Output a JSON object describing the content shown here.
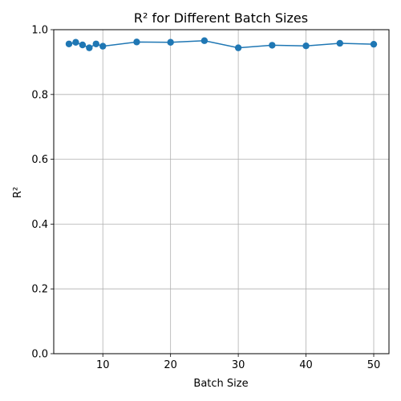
{
  "chart_data": {
    "type": "line",
    "title": "R² for Different Batch Sizes",
    "xlabel": "Batch Size",
    "ylabel": "R²",
    "xlim": [
      2.75,
      52.25
    ],
    "ylim": [
      0.0,
      1.0
    ],
    "xticks": [
      10,
      20,
      30,
      40,
      50
    ],
    "yticks": [
      0.0,
      0.2,
      0.4,
      0.6,
      0.8,
      1.0
    ],
    "xtick_labels": [
      "10",
      "20",
      "30",
      "40",
      "50"
    ],
    "ytick_labels": [
      "0.0",
      "0.2",
      "0.4",
      "0.6",
      "0.8",
      "1.0"
    ],
    "grid": true,
    "markers": true,
    "color": "#1f77b4",
    "series": [
      {
        "x": [
          5,
          6,
          7,
          8,
          9,
          10,
          15,
          20,
          25,
          30,
          35,
          40,
          45,
          50
        ],
        "values": [
          0.956,
          0.961,
          0.953,
          0.944,
          0.956,
          0.949,
          0.962,
          0.961,
          0.966,
          0.944,
          0.952,
          0.95,
          0.958,
          0.955
        ]
      }
    ]
  }
}
